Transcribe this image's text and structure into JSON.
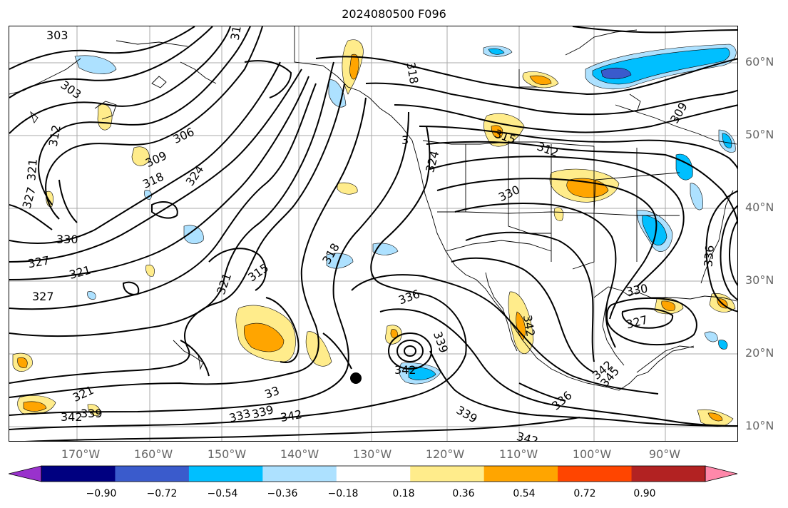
{
  "title": "2024080500 F096",
  "lat_labels": [
    "60°N",
    "50°N",
    "40°N",
    "30°N",
    "20°N",
    "10°N"
  ],
  "lon_labels": [
    "170°W",
    "160°W",
    "150°W",
    "140°W",
    "130°W",
    "120°W",
    "110°W",
    "100°W",
    "90°W"
  ],
  "colorbar": {
    "colors": [
      "#9932CC",
      "#000080",
      "#3A5BCC",
      "#00BFFF",
      "#ADE1FF",
      "#FFFFFF",
      "#FFEC8B",
      "#FFA500",
      "#FF4500",
      "#B22222",
      "#FF88AA"
    ],
    "tick_labels": [
      "−0.90",
      "−0.72",
      "−0.54",
      "−0.36",
      "−0.18",
      "0.18",
      "0.36",
      "0.54",
      "0.72",
      "0.90"
    ]
  },
  "contour_labels": [
    "303",
    "303",
    "31",
    "312",
    "306",
    "309",
    "318",
    "324",
    "321",
    "327",
    "330",
    "327",
    "321",
    "327",
    "318",
    "315",
    "321",
    "318",
    "324",
    "3",
    "315",
    "312",
    "309",
    "330",
    "336",
    "339",
    "342",
    "336",
    "339",
    "342",
    "342",
    "321",
    "33",
    "339",
    "333",
    "342",
    "342",
    "330",
    "327",
    "342",
    "345",
    "336",
    "339"
  ],
  "marker": "black-circle",
  "shading_colors": {
    "pos_light": "#FFEC8B",
    "pos_med": "#FFA500",
    "neg_light": "#ADE1FF",
    "neg_med": "#00BFFF",
    "neg_dark": "#3A5BCC"
  }
}
